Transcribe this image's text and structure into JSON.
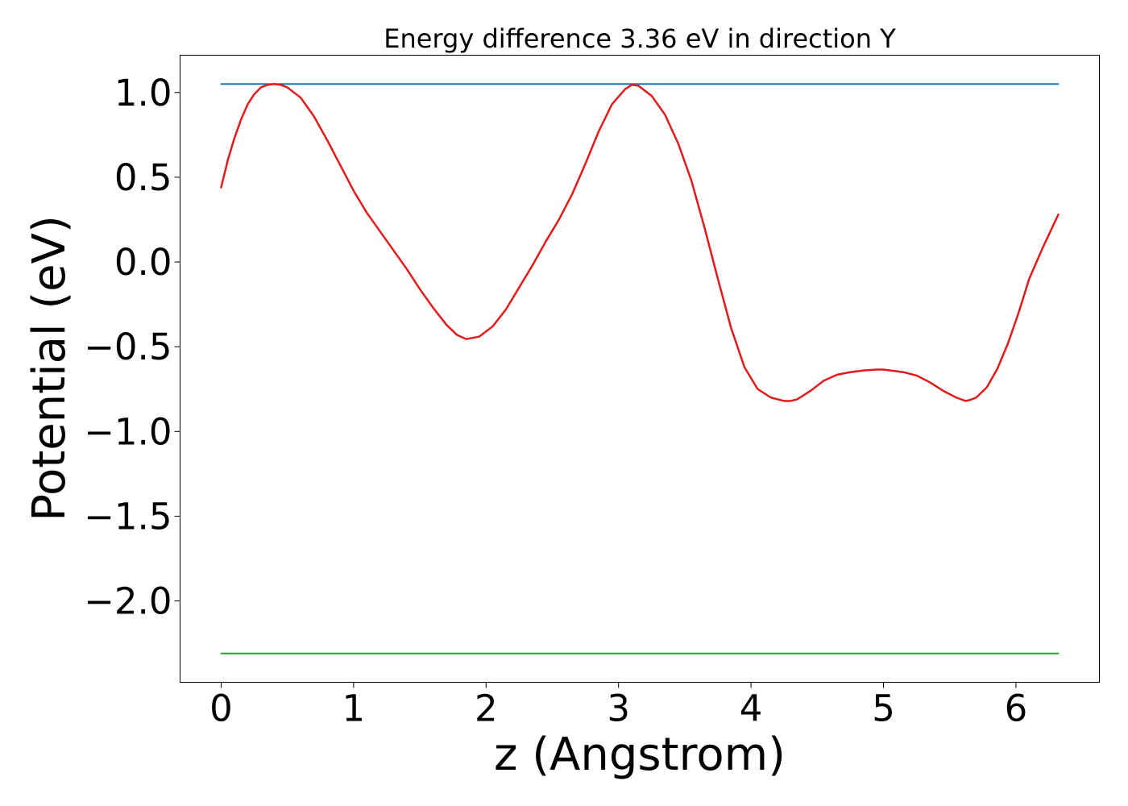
{
  "chart_data": {
    "type": "line",
    "title": "Energy difference 3.36 eV in direction Y",
    "xlabel": "z (Angstrom)",
    "ylabel": "Potential (eV)",
    "xlim": [
      -0.31,
      6.63
    ],
    "ylim": [
      -2.48,
      1.22
    ],
    "xticks": [
      0,
      1,
      2,
      3,
      4,
      5,
      6
    ],
    "xtick_labels": [
      "0",
      "1",
      "2",
      "3",
      "4",
      "5",
      "6"
    ],
    "yticks": [
      1.0,
      0.5,
      0.0,
      -0.5,
      -1.0,
      -1.5,
      -2.0
    ],
    "ytick_labels": [
      "1.0",
      "0.5",
      "0.0",
      "−0.5",
      "−1.0",
      "−1.5",
      "−2.0"
    ],
    "grid": false,
    "legend": false,
    "series": [
      {
        "color": "#1f77b4",
        "x": [
          0,
          6.32
        ],
        "y": [
          1.05,
          1.05
        ]
      },
      {
        "color": "#2ca02c",
        "x": [
          0,
          6.32
        ],
        "y": [
          -2.31,
          -2.31
        ]
      },
      {
        "color": "#e31a1c",
        "x": [
          0.0,
          0.05,
          0.1,
          0.15,
          0.2,
          0.25,
          0.3,
          0.35,
          0.4,
          0.45,
          0.5,
          0.6,
          0.7,
          0.8,
          0.9,
          1.0,
          1.1,
          1.2,
          1.3,
          1.4,
          1.5,
          1.6,
          1.7,
          1.78,
          1.85,
          1.95,
          2.05,
          2.15,
          2.25,
          2.35,
          2.45,
          2.55,
          2.65,
          2.75,
          2.85,
          2.95,
          3.05,
          3.1,
          3.15,
          3.25,
          3.35,
          3.45,
          3.55,
          3.65,
          3.75,
          3.85,
          3.95,
          4.05,
          4.15,
          4.25,
          4.3,
          4.35,
          4.45,
          4.55,
          4.65,
          4.75,
          4.85,
          4.95,
          5.0,
          5.05,
          5.15,
          5.25,
          5.35,
          5.45,
          5.55,
          5.62,
          5.65,
          5.7,
          5.78,
          5.86,
          5.94,
          6.02,
          6.1,
          6.2,
          6.32
        ],
        "y": [
          0.44,
          0.6,
          0.73,
          0.84,
          0.93,
          0.99,
          1.03,
          1.045,
          1.05,
          1.045,
          1.03,
          0.97,
          0.86,
          0.72,
          0.57,
          0.42,
          0.29,
          0.18,
          0.07,
          -0.04,
          -0.16,
          -0.27,
          -0.37,
          -0.43,
          -0.455,
          -0.44,
          -0.38,
          -0.28,
          -0.15,
          -0.02,
          0.12,
          0.25,
          0.4,
          0.58,
          0.77,
          0.93,
          1.02,
          1.045,
          1.04,
          0.98,
          0.87,
          0.7,
          0.48,
          0.2,
          -0.1,
          -0.39,
          -0.62,
          -0.75,
          -0.8,
          -0.82,
          -0.82,
          -0.81,
          -0.76,
          -0.7,
          -0.665,
          -0.65,
          -0.64,
          -0.635,
          -0.635,
          -0.64,
          -0.65,
          -0.67,
          -0.71,
          -0.76,
          -0.8,
          -0.82,
          -0.815,
          -0.8,
          -0.74,
          -0.63,
          -0.48,
          -0.3,
          -0.1,
          0.08,
          0.28
        ]
      }
    ]
  }
}
